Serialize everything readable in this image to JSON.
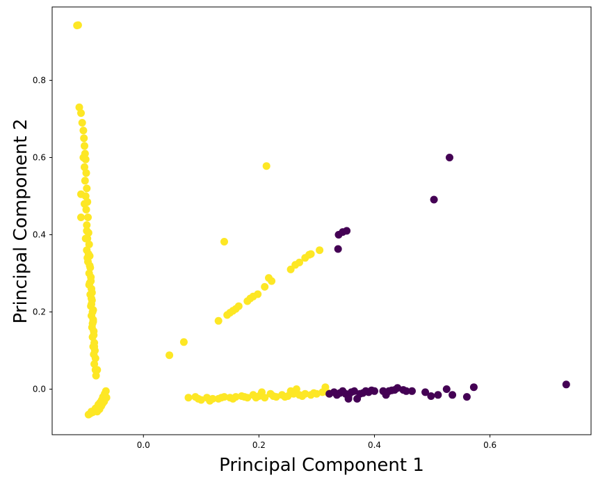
{
  "chart_data": {
    "type": "scatter",
    "xlabel": "Principal Component 1",
    "ylabel": "Principal Component 2",
    "xlim": [
      -0.158,
      0.775
    ],
    "ylim": [
      -0.118,
      0.99
    ],
    "xticks": [
      0.0,
      0.2,
      0.4,
      0.6
    ],
    "xtick_labels": [
      "0.0",
      "0.2",
      "0.4",
      "0.6"
    ],
    "yticks": [
      0.0,
      0.2,
      0.4,
      0.6,
      0.8
    ],
    "ytick_labels": [
      "0.0",
      "0.2",
      "0.4",
      "0.6",
      "0.8"
    ],
    "grid": false,
    "legend": "none",
    "colors": {
      "yellow": "#fde725",
      "purple": "#440154"
    },
    "series": [
      {
        "color": "yellow",
        "points": [
          [
            -0.115,
            0.942
          ],
          [
            -0.113,
            0.943
          ],
          [
            -0.111,
            0.73
          ],
          [
            -0.108,
            0.715
          ],
          [
            -0.106,
            0.69
          ],
          [
            -0.104,
            0.67
          ],
          [
            -0.103,
            0.65
          ],
          [
            -0.102,
            0.63
          ],
          [
            -0.101,
            0.61
          ],
          [
            -0.1,
            0.595
          ],
          [
            -0.102,
            0.575
          ],
          [
            -0.099,
            0.56
          ],
          [
            -0.101,
            0.54
          ],
          [
            -0.098,
            0.52
          ],
          [
            -0.1,
            0.5
          ],
          [
            -0.108,
            0.505
          ],
          [
            -0.097,
            0.485
          ],
          [
            -0.099,
            0.465
          ],
          [
            -0.096,
            0.445
          ],
          [
            -0.108,
            0.445
          ],
          [
            -0.098,
            0.425
          ],
          [
            -0.095,
            0.405
          ],
          [
            -0.097,
            0.39
          ],
          [
            -0.094,
            0.375
          ],
          [
            -0.098,
            0.36
          ],
          [
            -0.093,
            0.345
          ],
          [
            -0.096,
            0.33
          ],
          [
            -0.092,
            0.315
          ],
          [
            -0.094,
            0.3
          ],
          [
            -0.091,
            0.29
          ],
          [
            -0.093,
            0.275
          ],
          [
            -0.09,
            0.26
          ],
          [
            -0.092,
            0.245
          ],
          [
            -0.089,
            0.23
          ],
          [
            -0.091,
            0.215
          ],
          [
            -0.088,
            0.2
          ],
          [
            -0.09,
            0.19
          ],
          [
            -0.087,
            0.175
          ],
          [
            -0.089,
            0.16
          ],
          [
            -0.086,
            0.15
          ],
          [
            -0.088,
            0.135
          ],
          [
            -0.085,
            0.12
          ],
          [
            -0.087,
            0.11
          ],
          [
            -0.084,
            0.1
          ],
          [
            -0.086,
            0.09
          ],
          [
            -0.083,
            0.08
          ],
          [
            -0.085,
            0.065
          ],
          [
            -0.083,
            0.05
          ],
          [
            -0.08,
            0.05
          ],
          [
            -0.082,
            0.035
          ],
          [
            -0.088,
            0.17
          ],
          [
            -0.087,
            0.205
          ],
          [
            -0.09,
            0.235
          ],
          [
            -0.086,
            0.14
          ],
          [
            -0.091,
            0.28
          ],
          [
            -0.089,
            0.25
          ],
          [
            -0.095,
            0.35
          ],
          [
            -0.093,
            0.32
          ],
          [
            -0.1,
            0.39
          ],
          [
            -0.09,
            0.22
          ],
          [
            -0.085,
            0.11
          ],
          [
            -0.087,
            0.18
          ],
          [
            -0.104,
            0.6
          ],
          [
            -0.102,
            0.48
          ],
          [
            -0.098,
            0.41
          ],
          [
            -0.097,
            0.34
          ],
          [
            -0.094,
            0.27
          ],
          [
            -0.065,
            -0.005
          ],
          [
            -0.067,
            -0.012
          ],
          [
            -0.07,
            -0.02
          ],
          [
            -0.066,
            -0.025
          ],
          [
            -0.072,
            -0.028
          ],
          [
            -0.075,
            -0.035
          ],
          [
            -0.068,
            -0.032
          ],
          [
            -0.078,
            -0.04
          ],
          [
            -0.073,
            -0.044
          ],
          [
            -0.081,
            -0.048
          ],
          [
            -0.076,
            -0.052
          ],
          [
            -0.085,
            -0.055
          ],
          [
            -0.08,
            -0.058
          ],
          [
            -0.088,
            -0.06
          ],
          [
            -0.092,
            -0.063
          ],
          [
            -0.095,
            -0.066
          ],
          [
            -0.071,
            -0.038
          ],
          [
            -0.064,
            -0.022
          ],
          [
            -0.083,
            -0.05
          ],
          [
            -0.09,
            -0.058
          ],
          [
            0.045,
            0.088
          ],
          [
            0.07,
            0.122
          ],
          [
            0.13,
            0.177
          ],
          [
            0.14,
            0.382
          ],
          [
            0.145,
            0.192
          ],
          [
            0.15,
            0.198
          ],
          [
            0.155,
            0.203
          ],
          [
            0.16,
            0.208
          ],
          [
            0.165,
            0.215
          ],
          [
            0.18,
            0.228
          ],
          [
            0.185,
            0.235
          ],
          [
            0.19,
            0.24
          ],
          [
            0.198,
            0.246
          ],
          [
            0.21,
            0.265
          ],
          [
            0.213,
            0.578
          ],
          [
            0.217,
            0.288
          ],
          [
            0.222,
            0.28
          ],
          [
            0.255,
            0.31
          ],
          [
            0.263,
            0.322
          ],
          [
            0.27,
            0.328
          ],
          [
            0.28,
            0.34
          ],
          [
            0.287,
            0.348
          ],
          [
            0.29,
            0.35
          ],
          [
            0.305,
            0.36
          ],
          [
            0.078,
            -0.022
          ],
          [
            0.09,
            -0.02
          ],
          [
            0.1,
            -0.028
          ],
          [
            0.11,
            -0.022
          ],
          [
            0.12,
            -0.025
          ],
          [
            0.13,
            -0.025
          ],
          [
            0.14,
            -0.02
          ],
          [
            0.15,
            -0.022
          ],
          [
            0.16,
            -0.02
          ],
          [
            0.17,
            -0.018
          ],
          [
            0.18,
            -0.022
          ],
          [
            0.19,
            -0.015
          ],
          [
            0.2,
            -0.018
          ],
          [
            0.205,
            -0.008
          ],
          [
            0.21,
            -0.022
          ],
          [
            0.22,
            -0.012
          ],
          [
            0.23,
            -0.02
          ],
          [
            0.24,
            -0.015
          ],
          [
            0.25,
            -0.018
          ],
          [
            0.255,
            -0.005
          ],
          [
            0.26,
            -0.012
          ],
          [
            0.265,
            0.0
          ],
          [
            0.27,
            -0.015
          ],
          [
            0.28,
            -0.012
          ],
          [
            0.29,
            -0.015
          ],
          [
            0.3,
            -0.012
          ],
          [
            0.31,
            -0.008
          ],
          [
            0.315,
            0.005
          ],
          [
            0.095,
            -0.025
          ],
          [
            0.115,
            -0.03
          ],
          [
            0.135,
            -0.022
          ],
          [
            0.155,
            -0.025
          ],
          [
            0.175,
            -0.02
          ],
          [
            0.195,
            -0.022
          ],
          [
            0.225,
            -0.018
          ],
          [
            0.245,
            -0.02
          ],
          [
            0.275,
            -0.018
          ],
          [
            0.295,
            -0.01
          ],
          [
            0.32,
            -0.01
          ]
        ]
      },
      {
        "color": "purple",
        "points": [
          [
            0.53,
            0.6
          ],
          [
            0.503,
            0.491
          ],
          [
            0.337,
            0.363
          ],
          [
            0.338,
            0.4
          ],
          [
            0.345,
            0.407
          ],
          [
            0.352,
            0.41
          ],
          [
            0.322,
            -0.012
          ],
          [
            0.33,
            -0.008
          ],
          [
            0.335,
            -0.015
          ],
          [
            0.34,
            -0.01
          ],
          [
            0.345,
            -0.005
          ],
          [
            0.35,
            -0.012
          ],
          [
            0.355,
            -0.02
          ],
          [
            0.36,
            -0.008
          ],
          [
            0.365,
            -0.005
          ],
          [
            0.37,
            -0.025
          ],
          [
            0.375,
            -0.012
          ],
          [
            0.38,
            -0.01
          ],
          [
            0.385,
            -0.005
          ],
          [
            0.39,
            -0.008
          ],
          [
            0.4,
            -0.005
          ],
          [
            0.42,
            -0.015
          ],
          [
            0.425,
            -0.005
          ],
          [
            0.43,
            -0.003
          ],
          [
            0.435,
            -0.002
          ],
          [
            0.44,
            0.003
          ],
          [
            0.45,
            -0.002
          ],
          [
            0.455,
            -0.005
          ],
          [
            0.465,
            -0.005
          ],
          [
            0.488,
            -0.008
          ],
          [
            0.498,
            -0.018
          ],
          [
            0.51,
            -0.015
          ],
          [
            0.525,
            0.0
          ],
          [
            0.535,
            -0.015
          ],
          [
            0.56,
            -0.02
          ],
          [
            0.572,
            0.005
          ],
          [
            0.732,
            0.012
          ],
          [
            0.355,
            -0.025
          ],
          [
            0.395,
            -0.003
          ],
          [
            0.415,
            -0.005
          ]
        ]
      }
    ]
  }
}
